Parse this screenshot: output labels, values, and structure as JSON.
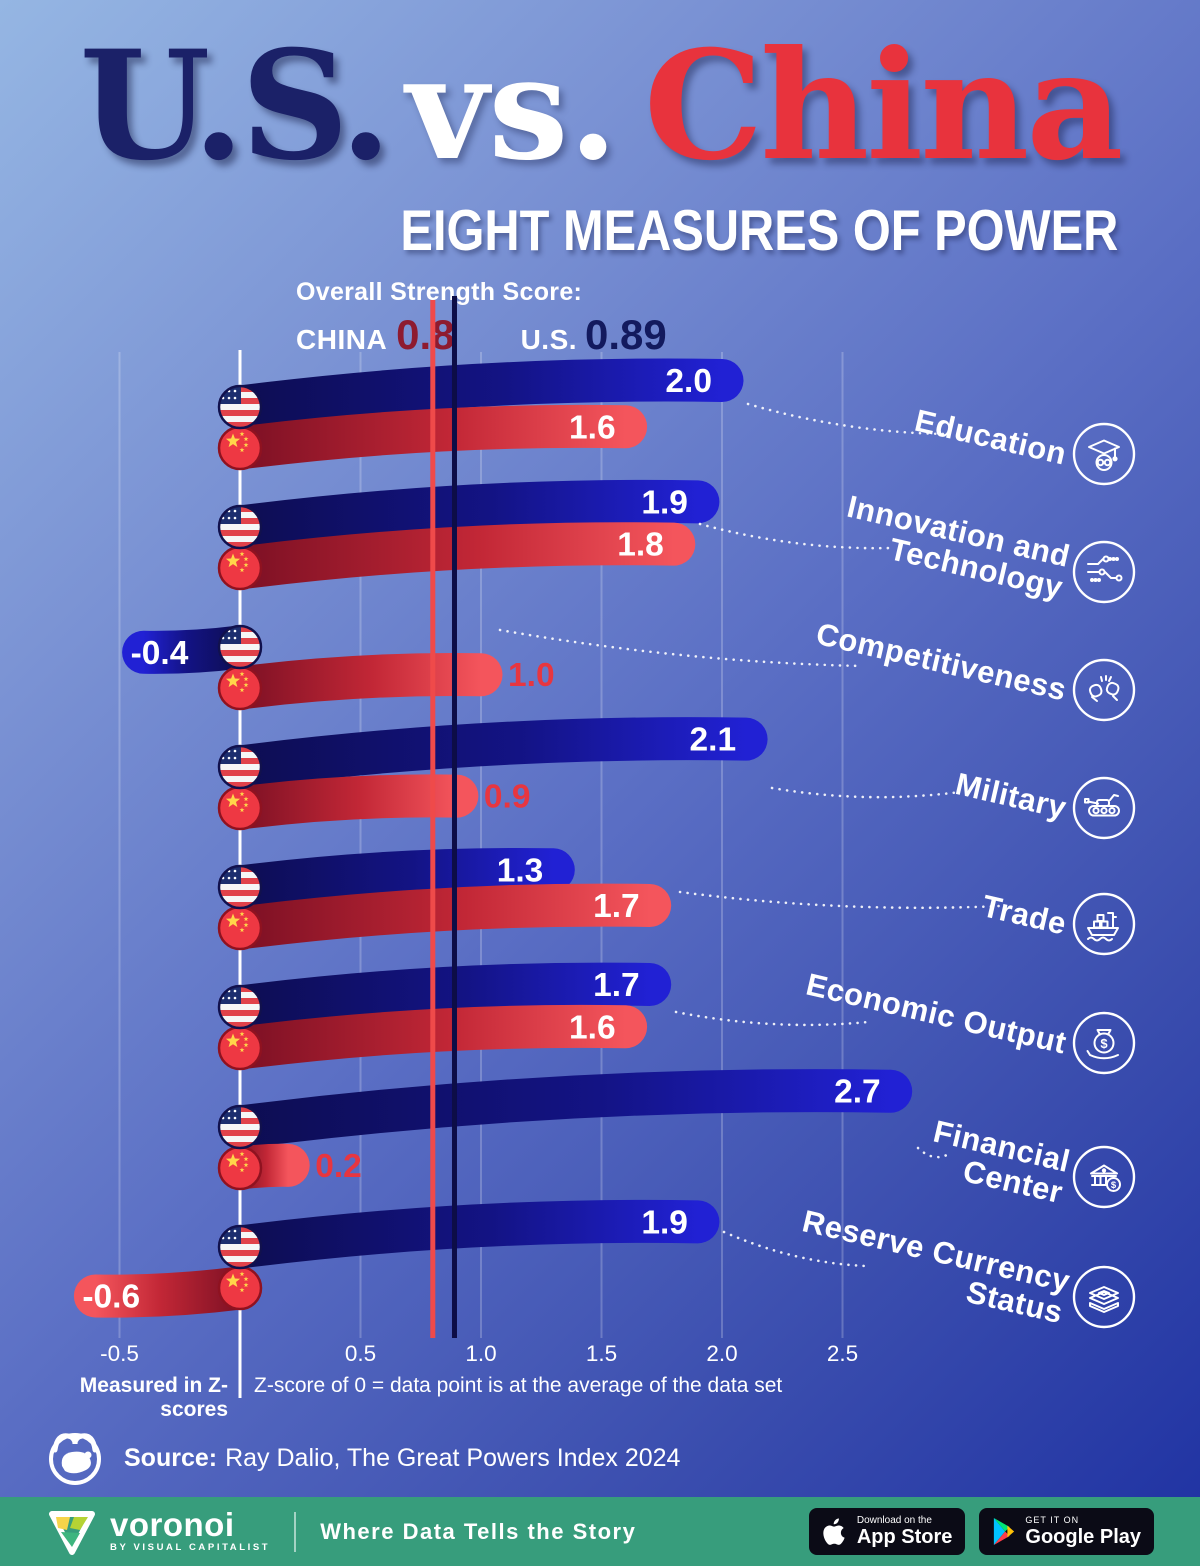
{
  "title": {
    "us": "U.S.",
    "vs": "vs.",
    "china": "China",
    "subtitle": "EIGHT MEASURES OF POWER"
  },
  "strength": {
    "heading": "Overall Strength Score:",
    "china_label": "CHINA",
    "china_value": "0.8",
    "us_label": "U.S.",
    "us_value": "0.89"
  },
  "chart_data": {
    "type": "bar",
    "title": "U.S. vs. China — Eight Measures of Power",
    "unit": "Z-score",
    "x_ticks": [
      -0.5,
      0.5,
      1.0,
      1.5,
      2.0,
      2.5
    ],
    "xlim": [
      -0.75,
      2.95
    ],
    "grid": "vertical, faint white",
    "legend_position": "flags at baseline",
    "categories": [
      "Education",
      "Innovation and Technology",
      "Competitiveness",
      "Military",
      "Trade",
      "Economic Output",
      "Financial Center",
      "Reserve Currency Status"
    ],
    "categories_display": [
      [
        "Education"
      ],
      [
        "Innovation and",
        "Technology"
      ],
      [
        "Competitiveness"
      ],
      [
        "Military"
      ],
      [
        "Trade"
      ],
      [
        "Economic Output"
      ],
      [
        "Financial",
        "Center"
      ],
      [
        "Reserve Currency",
        "Status"
      ]
    ],
    "category_icons": [
      "graduate-icon",
      "circuit-icon",
      "boxing-gloves-icon",
      "tank-icon",
      "cargo-ship-icon",
      "money-bag-icon",
      "bank-icon",
      "banknotes-icon"
    ],
    "series": [
      {
        "name": "U.S.",
        "flag": "us-flag-icon",
        "values": [
          2.0,
          1.9,
          -0.4,
          2.1,
          1.3,
          1.7,
          2.7,
          1.9
        ]
      },
      {
        "name": "China",
        "flag": "china-flag-icon",
        "values": [
          1.6,
          1.8,
          1.0,
          0.9,
          1.7,
          1.6,
          0.2,
          -0.6
        ]
      }
    ],
    "reference_lines": [
      {
        "label": "China overall strength",
        "value": 0.8,
        "color": "#ef4a4a"
      },
      {
        "label": "U.S. overall strength",
        "value": 0.89,
        "color": "#0d0d47"
      }
    ]
  },
  "colors": {
    "us_bar_dark": "#0d0d52",
    "us_bar_mid": "#131384",
    "us_bar_bright": "#2121d4",
    "china_bar_dark": "#7c1024",
    "china_bar_mid": "#c22736",
    "china_bar_bright": "#f4555c",
    "value_label_outside": "#e73640",
    "title_us": "#1b2168",
    "title_china": "#e8333d",
    "strength_china": "#8e1b30",
    "strength_us": "#131a5e",
    "footer_green": "#379d7c",
    "bg_top": "#95b6e3",
    "bg_bottom": "#1e31a2"
  },
  "axis_note": {
    "bold": "Measured in Z-scores",
    "text": "Z-score of 0 = data point is at the average of the data set"
  },
  "source": {
    "bold": "Source:",
    "text": "Ray Dalio, The Great Powers Index 2024"
  },
  "footer": {
    "brand": "voronoi",
    "brand_sub": "BY VISUAL CAPITALIST",
    "tagline": "Where Data Tells the Story",
    "appstore_top": "Download on the",
    "appstore_bottom": "App Store",
    "gplay_top": "GET IT ON",
    "gplay_bottom": "Google Play"
  }
}
